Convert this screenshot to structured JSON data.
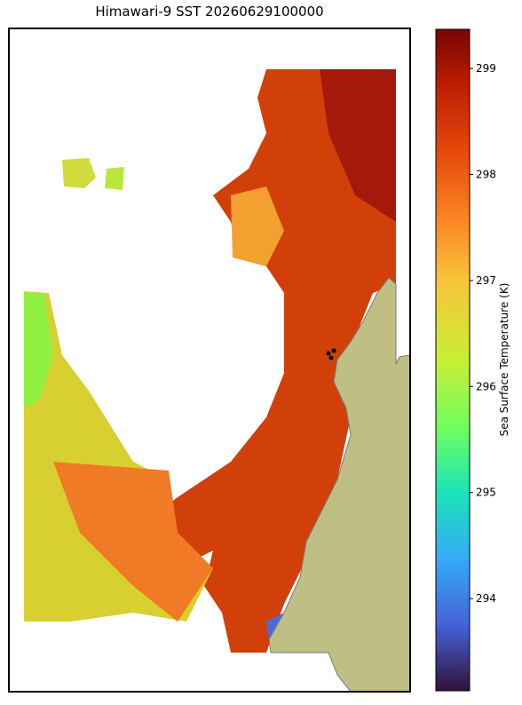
{
  "chart_data": {
    "type": "map",
    "title": "Himawari-9 SST 20260629100000",
    "colorbar": {
      "label": "Sea Surface Temperature (K)",
      "lim": [
        293.13,
        299.37
      ],
      "ticks": [
        294,
        295,
        296,
        297,
        298,
        299
      ]
    }
  }
}
